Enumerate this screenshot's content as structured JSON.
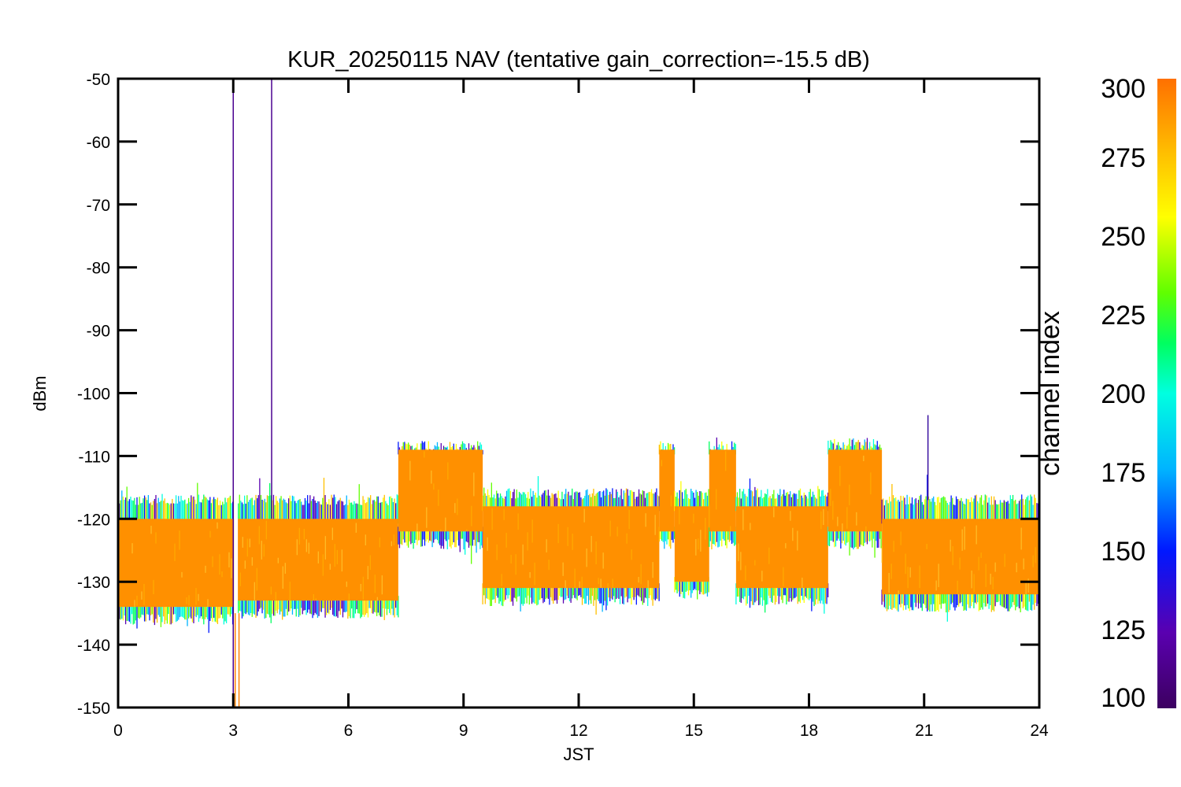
{
  "chart_data": {
    "type": "line",
    "title": "KUR_20250115 NAV (tentative gain_correction=-15.5 dB)",
    "xlabel": "JST",
    "ylabel": "dBm",
    "xlim": [
      0,
      24
    ],
    "ylim": [
      -150,
      -50
    ],
    "x_ticks": [
      "0",
      "3",
      "6",
      "9",
      "12",
      "15",
      "18",
      "21",
      "24"
    ],
    "y_ticks": [
      "-50",
      "-60",
      "-70",
      "-80",
      "-90",
      "-100",
      "-110",
      "-120",
      "-130",
      "-140",
      "-150"
    ],
    "grid": false,
    "colorbar": {
      "label": "channel index",
      "range": [
        100,
        300
      ],
      "ticks": [
        "100",
        "125",
        "150",
        "175",
        "200",
        "225",
        "250",
        "275",
        "300"
      ],
      "colormap": [
        "#3c0060",
        "#5a00b0",
        "#0018ff",
        "#00b4ff",
        "#00ffe0",
        "#00ff60",
        "#60ff00",
        "#ffff00",
        "#ffc000",
        "#ff7000"
      ]
    },
    "segments": [
      {
        "x": [
          0,
          3
        ],
        "orange_band": [
          -134,
          -120
        ],
        "upper_envelope": -117,
        "lower_envelope": -136
      },
      {
        "x": [
          3,
          7.3
        ],
        "orange_band": [
          -133,
          -120
        ],
        "upper_envelope": -117,
        "lower_envelope": -135
      },
      {
        "x": [
          7.3,
          9.5
        ],
        "orange_band": [
          -122,
          -109
        ],
        "upper_envelope": -108.5,
        "lower_envelope": -124
      },
      {
        "x": [
          9.5,
          14.1
        ],
        "orange_band": [
          -131,
          -118
        ],
        "upper_envelope": -116,
        "lower_envelope": -133
      },
      {
        "x": [
          14.1,
          14.5
        ],
        "orange_band": [
          -122,
          -109
        ],
        "upper_envelope": -108.5,
        "lower_envelope": -124
      },
      {
        "x": [
          14.5,
          15.4
        ],
        "orange_band": [
          -130,
          -118
        ],
        "upper_envelope": -116,
        "lower_envelope": -132
      },
      {
        "x": [
          15.4,
          16.1
        ],
        "orange_band": [
          -122,
          -109
        ],
        "upper_envelope": -108.5,
        "lower_envelope": -124
      },
      {
        "x": [
          16.1,
          18.5
        ],
        "orange_band": [
          -131,
          -118
        ],
        "upper_envelope": -116,
        "lower_envelope": -133
      },
      {
        "x": [
          18.5,
          19.9
        ],
        "orange_band": [
          -122,
          -109
        ],
        "upper_envelope": -108,
        "lower_envelope": -124
      },
      {
        "x": [
          19.9,
          24
        ],
        "orange_band": [
          -132,
          -120
        ],
        "upper_envelope": -117,
        "lower_envelope": -134
      }
    ],
    "spikes": [
      {
        "x": 3.0,
        "y": [
          -150,
          -52
        ],
        "color": "#4a0090"
      },
      {
        "x": 3.05,
        "y": [
          -150,
          -135
        ],
        "color": "#ff8000"
      },
      {
        "x": 3.15,
        "y": [
          -150,
          -135
        ],
        "color": "#ff8000"
      },
      {
        "x": 4.0,
        "y": [
          -120,
          -50
        ],
        "color": "#4a0090"
      },
      {
        "x": 21.1,
        "y": [
          -117,
          -103.5
        ],
        "color": "#3a10a0"
      }
    ],
    "gaps": [
      {
        "x": [
          3.02,
          3.12
        ]
      }
    ]
  }
}
